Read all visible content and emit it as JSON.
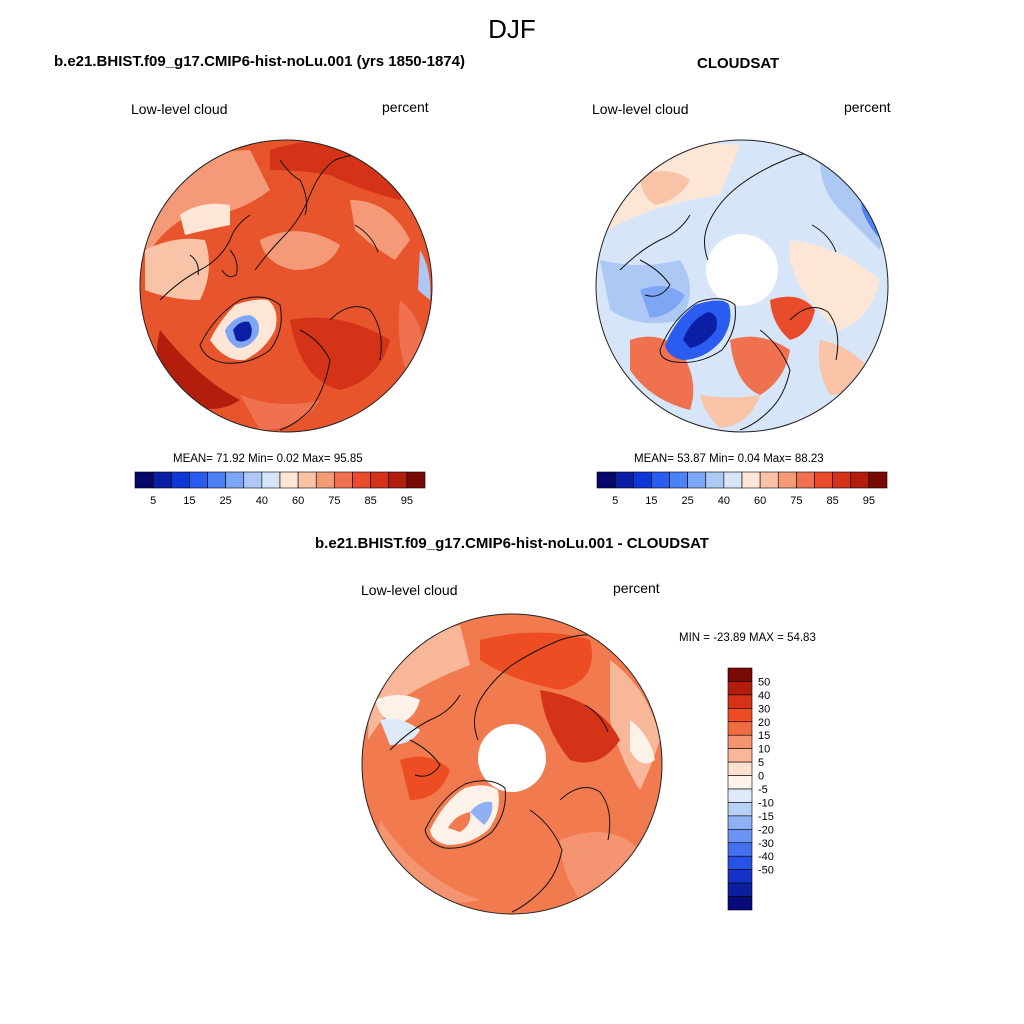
{
  "season": "DJF",
  "panels": [
    {
      "id": "model",
      "title": "b.e21.BHIST.f09_g17.CMIP6-hist-noLu.001 (yrs 1850-1874)",
      "left_label": "Low-level cloud",
      "right_label": "percent",
      "stats": {
        "mean_label": "MEAN=",
        "mean": "71.92",
        "min_label": "Min=",
        "min": "0.02",
        "max_label": "Max=",
        "max": "95.85"
      }
    },
    {
      "id": "obs",
      "title": "CLOUDSAT",
      "left_label": "Low-level cloud",
      "right_label": "percent",
      "stats": {
        "mean_label": "MEAN=",
        "mean": "53.87",
        "min_label": "Min=",
        "min": "0.04",
        "max_label": "Max=",
        "max": "88.23"
      }
    },
    {
      "id": "diff",
      "title": "b.e21.BHIST.f09_g17.CMIP6-hist-noLu.001 - CLOUDSAT",
      "left_label": "Low-level cloud",
      "right_label": "percent",
      "stats": {
        "min_label": "MIN =",
        "min": "-23.89",
        "max_label": "MAX =",
        "max": "54.83"
      }
    }
  ],
  "colorbar_abs": {
    "colors": [
      "#08086b",
      "#0a1fa3",
      "#1136d6",
      "#2a5cf0",
      "#4d82f5",
      "#7ea6f5",
      "#adc8f5",
      "#d6e6f8",
      "#fde6d6",
      "#f8c3a6",
      "#f49a78",
      "#ef7150",
      "#e84c2c",
      "#d43318",
      "#b21d0c",
      "#7a0a06"
    ],
    "tick_labels": [
      "5",
      "15",
      "25",
      "40",
      "60",
      "75",
      "85",
      "95"
    ]
  },
  "colorbar_diff": {
    "colors": [
      "#7a0a06",
      "#b21d0c",
      "#d43318",
      "#ec4d23",
      "#f06d42",
      "#f49470",
      "#f9b79a",
      "#fde0cd",
      "#fdf2e9",
      "#deeaf8",
      "#b8d0f3",
      "#8fb0f2",
      "#6a93f2",
      "#4470f0",
      "#2851e8",
      "#1532c8",
      "#0b1ea0",
      "#070a78"
    ],
    "tick_labels": [
      "50",
      "40",
      "30",
      "20",
      "15",
      "10",
      "5",
      "0",
      "-5",
      "-10",
      "-15",
      "-20",
      "-30",
      "-40",
      "-50"
    ]
  },
  "colors": {
    "panel_model_base": "#e8552c",
    "panel_obs_base": "#d6e6f8",
    "panel_diff_base": "#f27a4f",
    "coastline": "#111111"
  }
}
